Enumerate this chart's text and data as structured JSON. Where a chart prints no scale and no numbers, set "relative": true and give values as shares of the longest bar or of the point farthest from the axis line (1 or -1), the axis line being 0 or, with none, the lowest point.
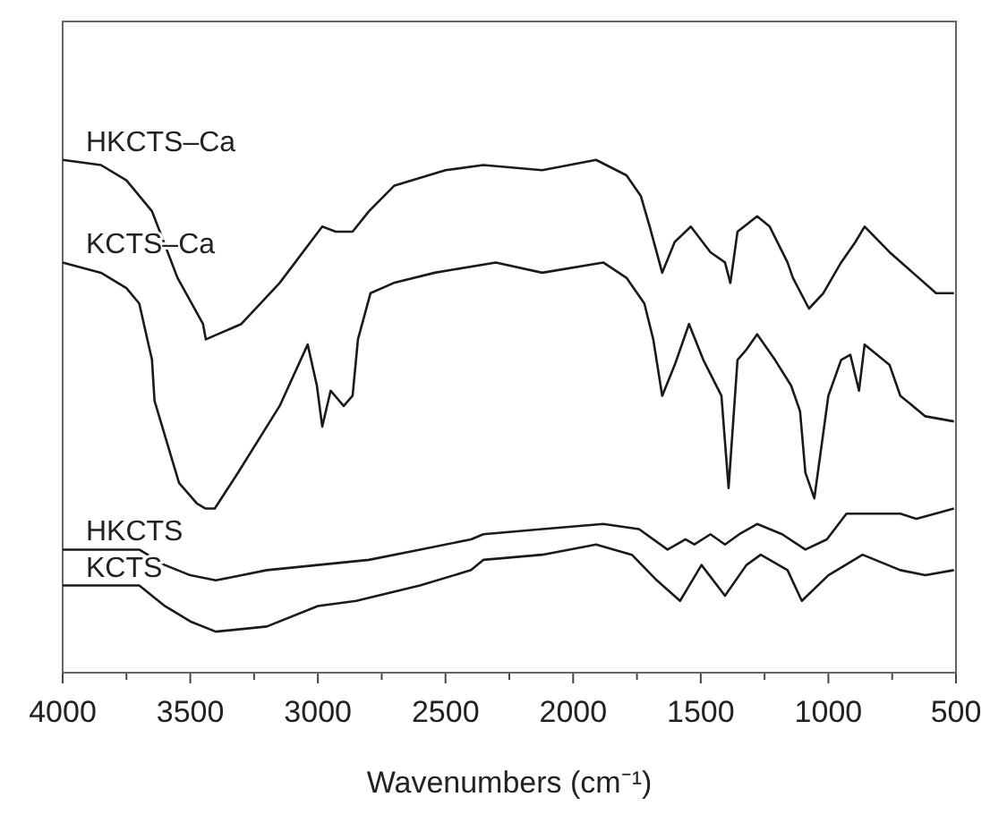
{
  "chart_data": {
    "type": "line",
    "relative": true,
    "xlabel": "Wavenumbers (cm⁻¹)",
    "xlim": [
      4000,
      500
    ],
    "xticks": [
      4000,
      {
        "value": 3750,
        "label": null
      },
      3500,
      {
        "value": 3250,
        "label": null
      },
      3000,
      {
        "value": 2750,
        "label": null
      },
      2500,
      {
        "value": 2250,
        "label": null
      },
      2000,
      {
        "value": 1750,
        "label": null
      },
      1500,
      {
        "value": 1250,
        "label": null
      },
      1000,
      {
        "value": 750,
        "label": null
      },
      500
    ],
    "tick_labels": "x",
    "grid": false,
    "marker": "none",
    "line_style": "solid",
    "series": [
      {
        "name": "HKCTS–Ca",
        "color": "#1a1a1a",
        "x": [
          4000,
          3850,
          3750,
          3650,
          3550,
          3450,
          3439,
          3300,
          3150,
          2983,
          2930,
          2899,
          2864,
          2800,
          2700,
          2500,
          2352,
          2121,
          1910,
          1791,
          1735,
          1700,
          1651,
          1602,
          1539,
          1462,
          1405,
          1384,
          1356,
          1279,
          1230,
          1160,
          1139,
          1076,
          1020,
          950,
          894,
          858,
          760,
          669,
          578,
          508
        ],
        "values": [
          1.0,
          0.99,
          0.96,
          0.9,
          0.77,
          0.68,
          0.65,
          0.68,
          0.76,
          0.87,
          0.86,
          0.86,
          0.86,
          0.9,
          0.95,
          0.98,
          0.99,
          0.98,
          1.0,
          0.97,
          0.93,
          0.87,
          0.78,
          0.84,
          0.87,
          0.82,
          0.8,
          0.76,
          0.86,
          0.89,
          0.87,
          0.8,
          0.77,
          0.71,
          0.74,
          0.8,
          0.84,
          0.87,
          0.82,
          0.78,
          0.74,
          0.74
        ]
      },
      {
        "name": "KCTS–Ca",
        "color": "#1a1a1a",
        "x": [
          4000,
          3850,
          3750,
          3700,
          3650,
          3640,
          3544,
          3474,
          3440,
          3404,
          3313,
          3150,
          3040,
          3004,
          2983,
          2950,
          2899,
          2864,
          2843,
          2794,
          2703,
          2542,
          2303,
          2121,
          1882,
          1791,
          1721,
          1686,
          1651,
          1602,
          1546,
          1490,
          1419,
          1391,
          1356,
          1321,
          1279,
          1209,
          1146,
          1111,
          1090,
          1055,
          1000,
          950,
          914,
          880,
          858,
          760,
          718,
          620,
          508
        ],
        "values": [
          0.8,
          0.78,
          0.75,
          0.72,
          0.61,
          0.53,
          0.37,
          0.33,
          0.32,
          0.32,
          0.39,
          0.52,
          0.64,
          0.56,
          0.48,
          0.55,
          0.52,
          0.54,
          0.65,
          0.74,
          0.76,
          0.78,
          0.8,
          0.78,
          0.8,
          0.77,
          0.72,
          0.65,
          0.54,
          0.6,
          0.68,
          0.61,
          0.54,
          0.36,
          0.61,
          0.63,
          0.66,
          0.61,
          0.56,
          0.51,
          0.39,
          0.34,
          0.54,
          0.61,
          0.62,
          0.55,
          0.64,
          0.6,
          0.54,
          0.5,
          0.49
        ]
      },
      {
        "name": "HKCTS",
        "color": "#1a1a1a",
        "x": [
          4000,
          3800,
          3700,
          3600,
          3500,
          3400,
          3200,
          3000,
          2800,
          2600,
          2400,
          2352,
          2121,
          1882,
          1742,
          1630,
          1560,
          1525,
          1462,
          1405,
          1349,
          1279,
          1181,
          1090,
          1006,
          929,
          858,
          718,
          655,
          508
        ],
        "values": [
          0.24,
          0.24,
          0.24,
          0.21,
          0.19,
          0.18,
          0.2,
          0.21,
          0.22,
          0.24,
          0.26,
          0.27,
          0.28,
          0.29,
          0.28,
          0.24,
          0.26,
          0.25,
          0.27,
          0.25,
          0.27,
          0.29,
          0.27,
          0.24,
          0.26,
          0.31,
          0.31,
          0.31,
          0.3,
          0.32
        ]
      },
      {
        "name": "KCTS",
        "color": "#1a1a1a",
        "x": [
          4000,
          3700,
          3600,
          3500,
          3400,
          3200,
          3000,
          2850,
          2600,
          2400,
          2352,
          2121,
          1910,
          1770,
          1672,
          1581,
          1497,
          1405,
          1321,
          1265,
          1160,
          1104,
          1000,
          866,
          718,
          620,
          508
        ],
        "values": [
          0.17,
          0.17,
          0.13,
          0.1,
          0.08,
          0.09,
          0.13,
          0.14,
          0.17,
          0.2,
          0.22,
          0.23,
          0.25,
          0.23,
          0.18,
          0.14,
          0.21,
          0.15,
          0.21,
          0.23,
          0.2,
          0.14,
          0.19,
          0.23,
          0.2,
          0.19,
          0.2
        ]
      }
    ]
  }
}
